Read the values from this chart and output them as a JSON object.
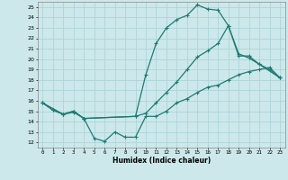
{
  "xlabel": "Humidex (Indice chaleur)",
  "bg_color": "#cce8ea",
  "grid_color": "#aed4d8",
  "line_color": "#1e7b72",
  "xlim": [
    -0.5,
    23.5
  ],
  "ylim": [
    11.5,
    25.5
  ],
  "xticks": [
    0,
    1,
    2,
    3,
    4,
    5,
    6,
    7,
    8,
    9,
    10,
    11,
    12,
    13,
    14,
    15,
    16,
    17,
    18,
    19,
    20,
    21,
    22,
    23
  ],
  "yticks": [
    12,
    13,
    14,
    15,
    16,
    17,
    18,
    19,
    20,
    21,
    22,
    23,
    24,
    25
  ],
  "line1_x": [
    0,
    1,
    2,
    3,
    4,
    5,
    6,
    7,
    8,
    9,
    10,
    11,
    12,
    13,
    14,
    15,
    16,
    17,
    18,
    19,
    20,
    21,
    22,
    23
  ],
  "line1_y": [
    15.8,
    15.1,
    14.7,
    14.9,
    14.3,
    12.4,
    12.1,
    13.0,
    12.5,
    12.5,
    14.5,
    14.5,
    15.0,
    15.8,
    16.2,
    16.8,
    17.3,
    17.5,
    18.0,
    18.5,
    18.8,
    19.0,
    19.2,
    18.2
  ],
  "line2_x": [
    0,
    1,
    2,
    3,
    4,
    9,
    10,
    11,
    12,
    13,
    14,
    15,
    16,
    17,
    18,
    19,
    20,
    21,
    22,
    23
  ],
  "line2_y": [
    15.8,
    15.1,
    14.7,
    15.0,
    14.3,
    14.5,
    18.5,
    21.5,
    23.0,
    23.8,
    24.2,
    25.2,
    24.8,
    24.7,
    23.2,
    20.3,
    20.3,
    19.5,
    19.0,
    18.2
  ],
  "line3_x": [
    0,
    2,
    3,
    4,
    9,
    10,
    11,
    12,
    13,
    14,
    15,
    16,
    17,
    18,
    19,
    20,
    21,
    23
  ],
  "line3_y": [
    15.8,
    14.7,
    15.0,
    14.3,
    14.5,
    14.8,
    15.8,
    16.8,
    17.8,
    19.0,
    20.2,
    20.8,
    21.5,
    23.2,
    20.5,
    20.1,
    19.5,
    18.2
  ]
}
